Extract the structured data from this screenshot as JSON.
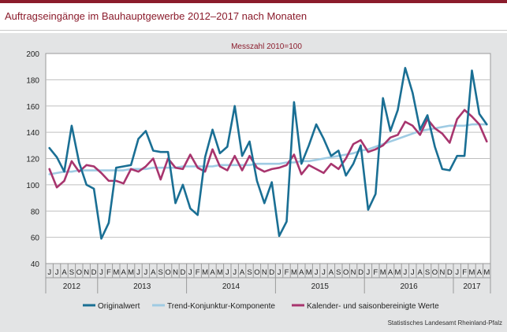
{
  "title": "Auftragseingänge im Bauhauptgewerbe 2012–2017 nach Monaten",
  "source": "Statistisches Landesamt Rheinland-Pfalz",
  "chart_data": {
    "type": "line",
    "subtitle": "Messzahl 2010=100",
    "ylim": [
      40,
      200
    ],
    "yticks": [
      40,
      60,
      80,
      100,
      120,
      140,
      160,
      180,
      200
    ],
    "grid": true,
    "legend_position": "bottom",
    "month_labels": [
      "J",
      "J",
      "A",
      "S",
      "O",
      "N",
      "D",
      "J",
      "F",
      "M",
      "A",
      "M",
      "J",
      "J",
      "A",
      "S",
      "O",
      "N",
      "D",
      "J",
      "F",
      "M",
      "A",
      "M",
      "J",
      "J",
      "A",
      "S",
      "O",
      "N",
      "D",
      "J",
      "F",
      "M",
      "A",
      "M",
      "J",
      "J",
      "A",
      "S",
      "O",
      "N",
      "D",
      "J",
      "F",
      "M",
      "A",
      "M",
      "J",
      "J",
      "A",
      "S",
      "O",
      "N",
      "D",
      "J",
      "F",
      "M",
      "A",
      "M"
    ],
    "years": [
      {
        "label": "2012",
        "start": 0,
        "count": 7
      },
      {
        "label": "2013",
        "start": 7,
        "count": 12
      },
      {
        "label": "2014",
        "start": 19,
        "count": 12
      },
      {
        "label": "2015",
        "start": 31,
        "count": 12
      },
      {
        "label": "2016",
        "start": 43,
        "count": 12
      },
      {
        "label": "2017",
        "start": 55,
        "count": 5
      }
    ],
    "series": [
      {
        "name": "Originalwert",
        "color": "#1a6f94",
        "values": [
          128,
          121,
          110,
          145,
          117,
          100,
          97,
          59,
          71,
          113,
          114,
          115,
          135,
          141,
          126,
          125,
          125,
          86,
          100,
          82,
          77,
          121,
          142,
          124,
          129,
          160,
          122,
          133,
          103,
          86,
          102,
          61,
          72,
          163,
          116,
          130,
          146,
          135,
          122,
          126,
          107,
          116,
          130,
          81,
          93,
          166,
          141,
          157,
          189,
          170,
          142,
          153,
          129,
          112,
          111,
          122,
          122,
          187,
          154,
          146
        ]
      },
      {
        "name": "Trend-Konjunktur-Komponente",
        "color": "#9fcbe3",
        "values": [
          108,
          109,
          110,
          110,
          111,
          111,
          111,
          111,
          111,
          111,
          111,
          112,
          112,
          112,
          113,
          113,
          113,
          113,
          114,
          114,
          114,
          114,
          114,
          115,
          115,
          115,
          115,
          115,
          116,
          116,
          116,
          116,
          117,
          117,
          118,
          118,
          119,
          120,
          121,
          122,
          123,
          124,
          126,
          127,
          129,
          131,
          133,
          135,
          137,
          139,
          141,
          142,
          143,
          144,
          145,
          145,
          145,
          146,
          146,
          146
        ]
      },
      {
        "name": "Kalender- und saisonbereinigte Werte",
        "color": "#a8356e",
        "values": [
          112,
          98,
          103,
          118,
          110,
          115,
          114,
          109,
          103,
          103,
          101,
          112,
          110,
          114,
          120,
          104,
          120,
          113,
          112,
          123,
          113,
          110,
          127,
          114,
          111,
          122,
          111,
          122,
          113,
          110,
          112,
          113,
          115,
          123,
          108,
          115,
          112,
          109,
          116,
          112,
          120,
          131,
          134,
          125,
          127,
          130,
          136,
          138,
          148,
          145,
          138,
          150,
          143,
          139,
          132,
          150,
          157,
          152,
          146,
          133
        ]
      }
    ]
  }
}
